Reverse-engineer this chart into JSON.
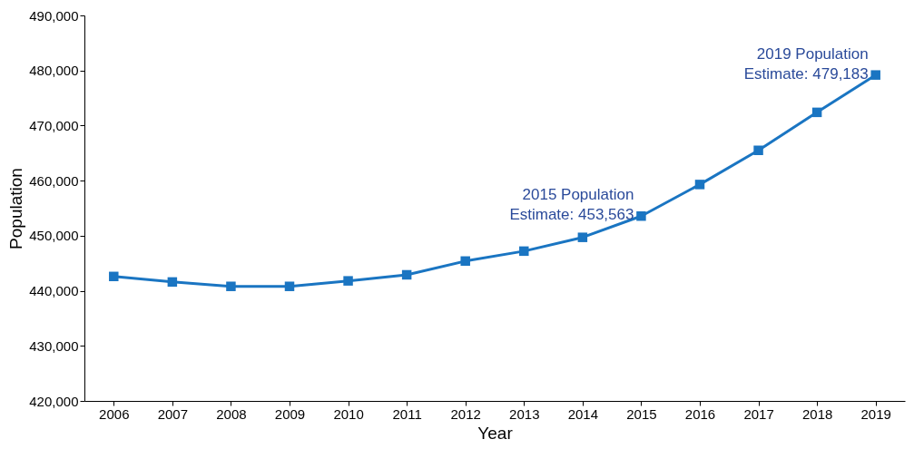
{
  "chart_data": {
    "type": "line",
    "xlabel": "Year",
    "ylabel": "Population",
    "categories": [
      "2006",
      "2007",
      "2008",
      "2009",
      "2010",
      "2011",
      "2012",
      "2013",
      "2014",
      "2015",
      "2016",
      "2017",
      "2018",
      "2019"
    ],
    "series": [
      {
        "color": "#1a75c2",
        "values": [
          442600,
          441600,
          440800,
          440800,
          441800,
          442900,
          445400,
          447200,
          449700,
          453563,
          459300,
          465500,
          472400,
          479183
        ]
      }
    ],
    "ylim": [
      420000,
      490000
    ],
    "yticks": [
      {
        "value": 420000,
        "label": "420,000"
      },
      {
        "value": 430000,
        "label": "430,000"
      },
      {
        "value": 440000,
        "label": "440,000"
      },
      {
        "value": 450000,
        "label": "450,000"
      },
      {
        "value": 460000,
        "label": "460,000"
      },
      {
        "value": 470000,
        "label": "470,000"
      },
      {
        "value": 480000,
        "label": "480,000"
      },
      {
        "value": 490000,
        "label": "490,000"
      }
    ],
    "annotations": [
      {
        "text": "2015 Population\nEstimate: 453,563",
        "x": "2015",
        "y": 453563
      },
      {
        "text": "2019 Population\nEstimate: 479,183",
        "x": "2019",
        "y": 479183
      }
    ],
    "marker": "square",
    "line_style": "solid",
    "grid": false,
    "legend": false
  }
}
